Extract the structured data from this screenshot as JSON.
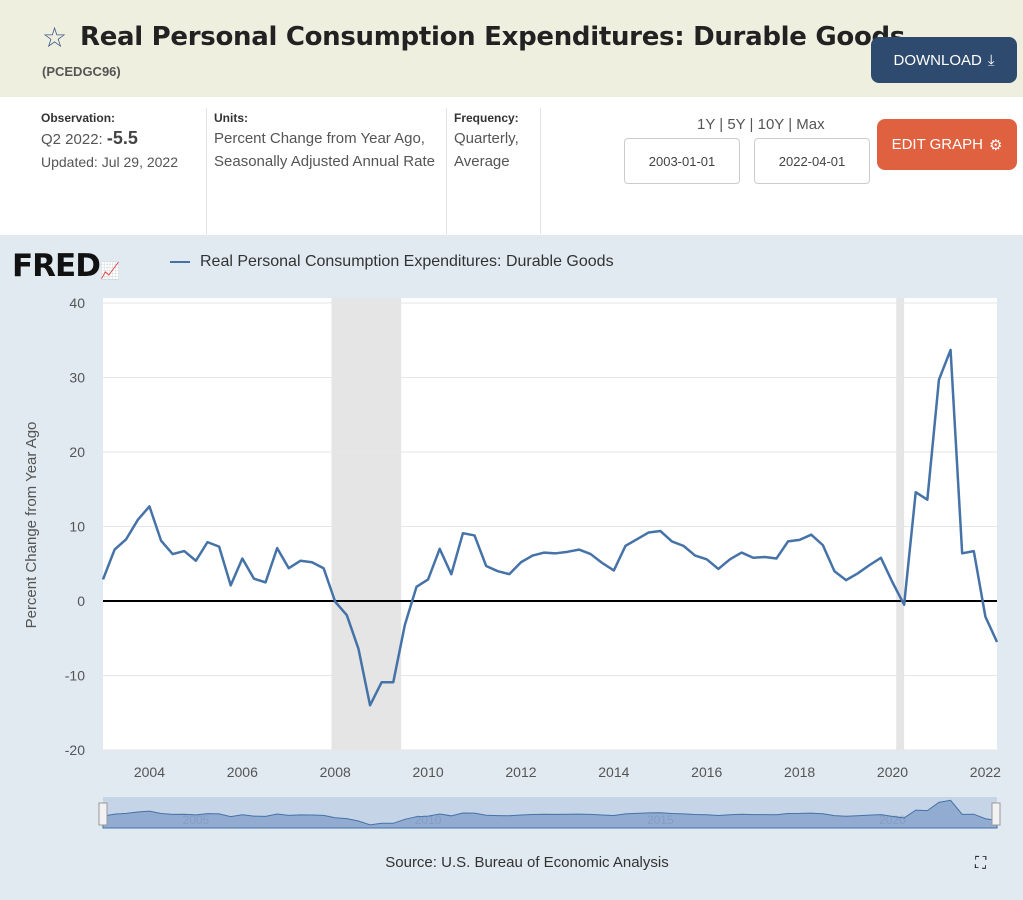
{
  "header": {
    "title": "Real Personal Consumption Expenditures: Durable Goods",
    "series_id": "(PCEDGC96)",
    "download_label": "DOWNLOAD"
  },
  "info": {
    "observation_label": "Observation:",
    "observation_period": "Q2 2022:",
    "observation_value": "-5.5",
    "updated": "Updated: Jul 29, 2022",
    "units_label": "Units:",
    "units": "Percent Change from Year Ago, Seasonally Adjusted Annual Rate",
    "frequency_label": "Frequency:",
    "frequency": "Quarterly, Average"
  },
  "controls": {
    "ranges": [
      "1Y",
      "5Y",
      "10Y",
      "Max"
    ],
    "start_date": "2003-01-01",
    "end_date": "2022-04-01",
    "edit_label": "EDIT GRAPH"
  },
  "colors": {
    "line": "#4572a7",
    "recession": "#e5e5e5",
    "accent_download": "#2e4a6e",
    "accent_edit": "#e0613f"
  },
  "chart_data": {
    "type": "line",
    "title": "Real Personal Consumption Expenditures: Durable Goods",
    "logo": "FRED",
    "ylabel": "Percent Change from Year Ago",
    "ylim": [
      -20,
      40
    ],
    "yticks": [
      40,
      30,
      20,
      10,
      0,
      -10,
      -20
    ],
    "xlim": [
      2003.0,
      2022.25
    ],
    "xticks": [
      2004,
      2006,
      2008,
      2010,
      2012,
      2014,
      2016,
      2018,
      2020,
      2022
    ],
    "recessions": [
      [
        2007.92,
        2009.42
      ],
      [
        2020.08,
        2020.25
      ]
    ],
    "start": "2003Q1",
    "legend": "top-left",
    "series": [
      {
        "name": "Real Personal Consumption Expenditures: Durable Goods",
        "values": [
          2.9,
          6.9,
          8.3,
          10.9,
          12.7,
          8.1,
          6.3,
          6.7,
          5.4,
          7.9,
          7.3,
          2.1,
          5.7,
          3.0,
          2.5,
          7.1,
          4.4,
          5.4,
          5.2,
          4.4,
          -0.1,
          -1.9,
          -6.4,
          -14.0,
          -10.9,
          -10.9,
          -3.2,
          1.9,
          2.9,
          7.0,
          3.6,
          9.1,
          8.8,
          4.7,
          4.0,
          3.6,
          5.2,
          6.1,
          6.5,
          6.4,
          6.6,
          6.9,
          6.3,
          5.1,
          4.1,
          7.4,
          8.3,
          9.2,
          9.4,
          8.0,
          7.4,
          6.1,
          5.6,
          4.3,
          5.6,
          6.5,
          5.8,
          5.9,
          5.7,
          8.0,
          8.2,
          8.9,
          7.5,
          4.0,
          2.8,
          3.7,
          4.8,
          5.8,
          2.5,
          -0.5,
          14.6,
          13.6,
          29.7,
          33.7,
          6.4,
          6.7,
          -2.1,
          -5.5
        ]
      }
    ],
    "navigator_labels": [
      "2005",
      "2010",
      "2015",
      "2020"
    ],
    "source": "Source: U.S. Bureau of Economic Analysis"
  }
}
